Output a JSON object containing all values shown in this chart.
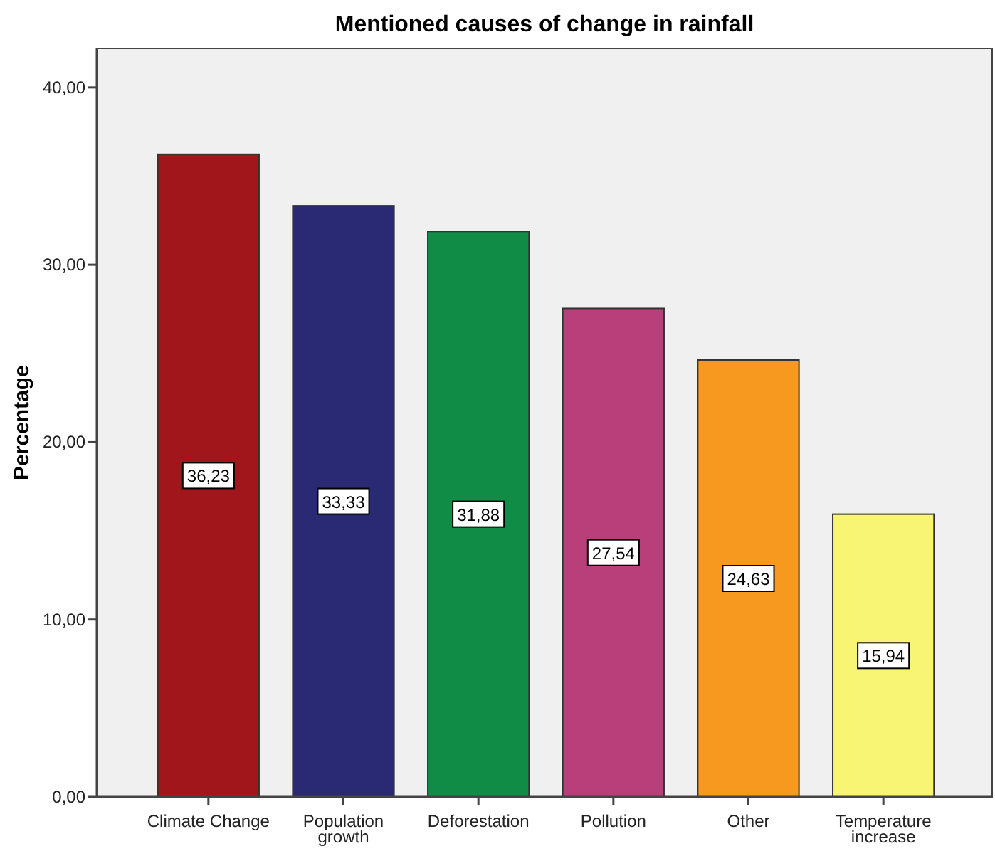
{
  "chart_data": {
    "type": "bar",
    "title": "Mentioned causes of change in rainfall",
    "ylabel": "Percentage",
    "categories": [
      "Climate Change",
      "Population growth",
      "Deforestation",
      "Pollution",
      "Other",
      "Temperature increase"
    ],
    "values": [
      36.23,
      33.33,
      31.88,
      27.54,
      24.63,
      15.94
    ],
    "colors": [
      "#a0161b",
      "#292a73",
      "#108c47",
      "#b93f7b",
      "#f7991f",
      "#f8f575"
    ],
    "value_labels": [
      "36,23",
      "33,33",
      "31,88",
      "27,54",
      "24,63",
      "15,94"
    ],
    "ylim": [
      0,
      42.2
    ],
    "yticks": [
      {
        "value": 0,
        "label": "0,00"
      },
      {
        "value": 10,
        "label": "10,00"
      },
      {
        "value": 20,
        "label": "20,00"
      },
      {
        "value": 30,
        "label": "30,00"
      },
      {
        "value": 40,
        "label": "40,00"
      }
    ]
  }
}
